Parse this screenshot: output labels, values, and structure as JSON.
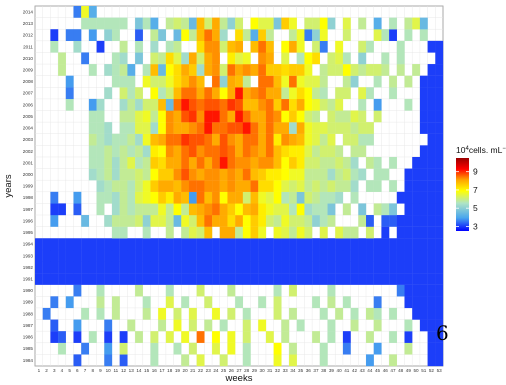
{
  "chart_data": {
    "type": "heatmap",
    "xlabel": "weeks",
    "ylabel": "years",
    "x_categories": [
      1,
      2,
      3,
      4,
      5,
      6,
      7,
      8,
      9,
      10,
      11,
      12,
      13,
      14,
      15,
      16,
      17,
      18,
      19,
      20,
      21,
      22,
      23,
      24,
      25,
      26,
      27,
      28,
      29,
      30,
      31,
      32,
      33,
      34,
      35,
      36,
      37,
      38,
      39,
      40,
      41,
      42,
      43,
      44,
      45,
      46,
      47,
      48,
      49,
      50,
      51,
      52,
      53
    ],
    "y_categories": [
      1984,
      1985,
      1986,
      1987,
      1988,
      1989,
      1990,
      1991,
      1992,
      1993,
      1994,
      1995,
      1996,
      1997,
      1998,
      1999,
      2000,
      2001,
      2002,
      2003,
      2004,
      2005,
      2006,
      2007,
      2008,
      2009,
      2010,
      2011,
      2012,
      2013,
      2014
    ],
    "colorbar": {
      "title_base": "10",
      "title_exponent": "4",
      "title_unit": "cells. mL",
      "title_unit_exponent": "−1",
      "ticks": [
        3,
        5,
        7,
        9
      ],
      "range": [
        2.5,
        10.5
      ],
      "colors": [
        "#0000ff",
        "#4aa6ee",
        "#aee4c6",
        "#ffff00",
        "#ffa500",
        "#ff0000",
        "#990000"
      ]
    },
    "grid": true,
    "rows": {
      "2014": ".....3E5.....................................................",
      "2013": "......AAAAAA.7A5.BCB6JCKB8C.FDD7IE.CCF8.D.B.5.A.BD6....",
      "2012": "..1.33.4.8A..2.B7.6FBJMK9.HB5IB..BE38E..C...DA1.A.A..",
      "2011": "..A..9..1..B.A.9.AB..HLLCJK.JMJ.FKE.C3.E..CA...A...",
      "2010": "...B..3...A9.7.CBHD9KCKL.GDE.LK.D.AFH.CDA.8..A.A....",
      "2009": "...B...A.9AB5.AJ6FHKI9KLCMKLKMIIHIIE.BCCFCBCCB.B.B.",
      "2008": "....4.....AAA.ECCEHJLJ.M8KJB.MMJEMEDDB..B8..A.B.B.",
      "2007": "....3....9.CAC.FACJMMKMKFKPKLMKKBEHFBA.CC.DA..A...",
      "2006": "....A..49..9B9CCJ6MPNMNNMONJJLMIMHKFECBD..A.4...A.",
      "2005": ".......AA..BBDEBFLKNOLPPMKPMKKMLFIFCB.CBBDC.C.....",
      "2004": ".......AA9.AADD9FLKKLMPMMNNPMKMKK9KEDDCCCBCC......",
      "2003": ".......BA9AAB9EJKMMONNMKNLKMMKMGLKJEDBD.CCAA.......",
      "2002": ".......AABABAB9GFLKMNLMMNMKMLKMJHGGDBCCB.BB.......",
      "2001": ".......AAB9BDABIHKKMKMKMPMLLKLLJFIGCCBBCB9.BA.A..",
      "2000": ".......9AB9BBCBFIILNLKLLKLKMJIGGFEEBBB9BCA9.AA..",
      "1999": "........9ABBACEIKKJLMMLLKLKKMHHFDCDBCBCBB9.AA.A.",
      "1998": "..3..4..AA9BADEFIGKJ4MJLFKKCJEDFAB7CBAA9.A.....",
      "1997": "..11.2..A.9BABBBEBFBJKLMKIFJKGEDDAF9AA7.B.7.BA7.",
      "1996": "..4...6..9BBBC8DDB6ECJMKKHKFIGCBECCB8AB...B2.22",
      "1995": "..........AA..A..B.BDCJ.KKBFIE.EDBEC.D.DBB.C.1.",
      "1994": "",
      "1993": "",
      "1992": "",
      "1991": "",
      "1990": ".....3..A....B...A...C...B.....A.C....A........3",
      "1989": "..3.4...B.B...A..D.A..C...A..A.C....A.B.A...3...",
      "1988": ".3....A.A.B...B.E.C.D..E.C.A...C.B...A.B.A.BA.A..",
      "1987": "..2..4...3..B...B.E.C.B.A..C.E..B.A...A..B..B...A.",
      "1986": "..12.1.A.1.1.B.C.D.E.M.F.E.C..D.B...B.A.1..B..A.1..",
      "1985": "...A..3..4.C...A..A.C..D.E.A...F.B...A..3...4...B..",
      "1984": ".....2...3.2...A...B.D..C..A...E.D...A.....4..B...."
    }
  },
  "stray_label": "6"
}
